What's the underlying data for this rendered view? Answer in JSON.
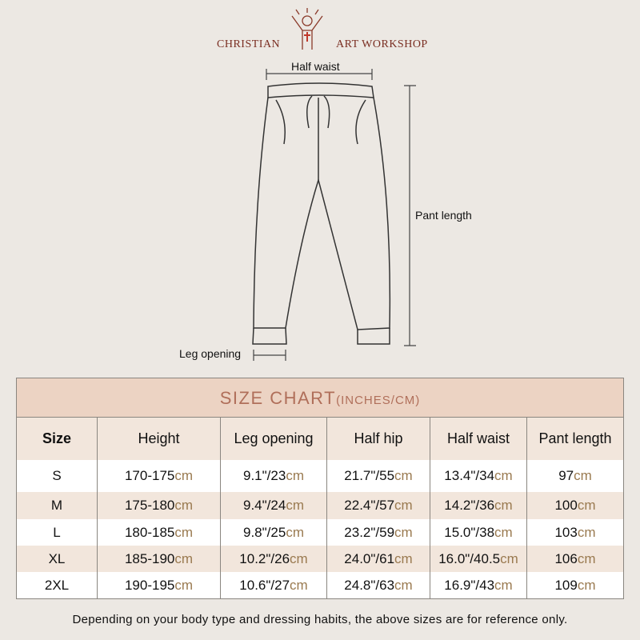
{
  "brand": {
    "left": "CHRISTIAN",
    "right": "ART WORKSHOP",
    "logo": "jesus-with-cross-logo"
  },
  "diagram": {
    "half_waist": "Half waist",
    "pant_length": "Pant length",
    "leg_opening": "Leg opening"
  },
  "table": {
    "title": "SIZE CHART",
    "title_units": "(INCHES/CM)",
    "headers": [
      "Size",
      "Height",
      "Leg opening",
      "Half hip",
      "Half waist",
      "Pant length"
    ],
    "unit": "cm",
    "rows": [
      {
        "size": "S",
        "height": "170-175",
        "leg": "9.1\"/23",
        "hip": "21.7\"/55",
        "waist": "13.4\"/34",
        "length": "97"
      },
      {
        "size": "M",
        "height": "175-180",
        "leg": "9.4\"/24",
        "hip": "22.4\"/57",
        "waist": "14.2\"/36",
        "length": "100"
      },
      {
        "size": "L",
        "height": "180-185",
        "leg": "9.8\"/25",
        "hip": "23.2\"/59",
        "waist": "15.0\"/38",
        "length": "103"
      },
      {
        "size": "XL",
        "height": "185-190",
        "leg": "10.2\"/26",
        "hip": "24.0\"/61",
        "waist": "16.0\"/40.5",
        "length": "106"
      },
      {
        "size": "2XL",
        "height": "190-195",
        "leg": "10.6\"/27",
        "hip": "24.8\"/63",
        "waist": "16.9\"/43",
        "length": "109"
      }
    ]
  },
  "footer": "Depending on your body type and dressing habits, the above sizes are for reference only.",
  "colors": {
    "title_bg": "#ecd3c3",
    "title_text": "#b06f5a",
    "unit_text": "#9a7a50",
    "brand": "#7a2e22"
  }
}
